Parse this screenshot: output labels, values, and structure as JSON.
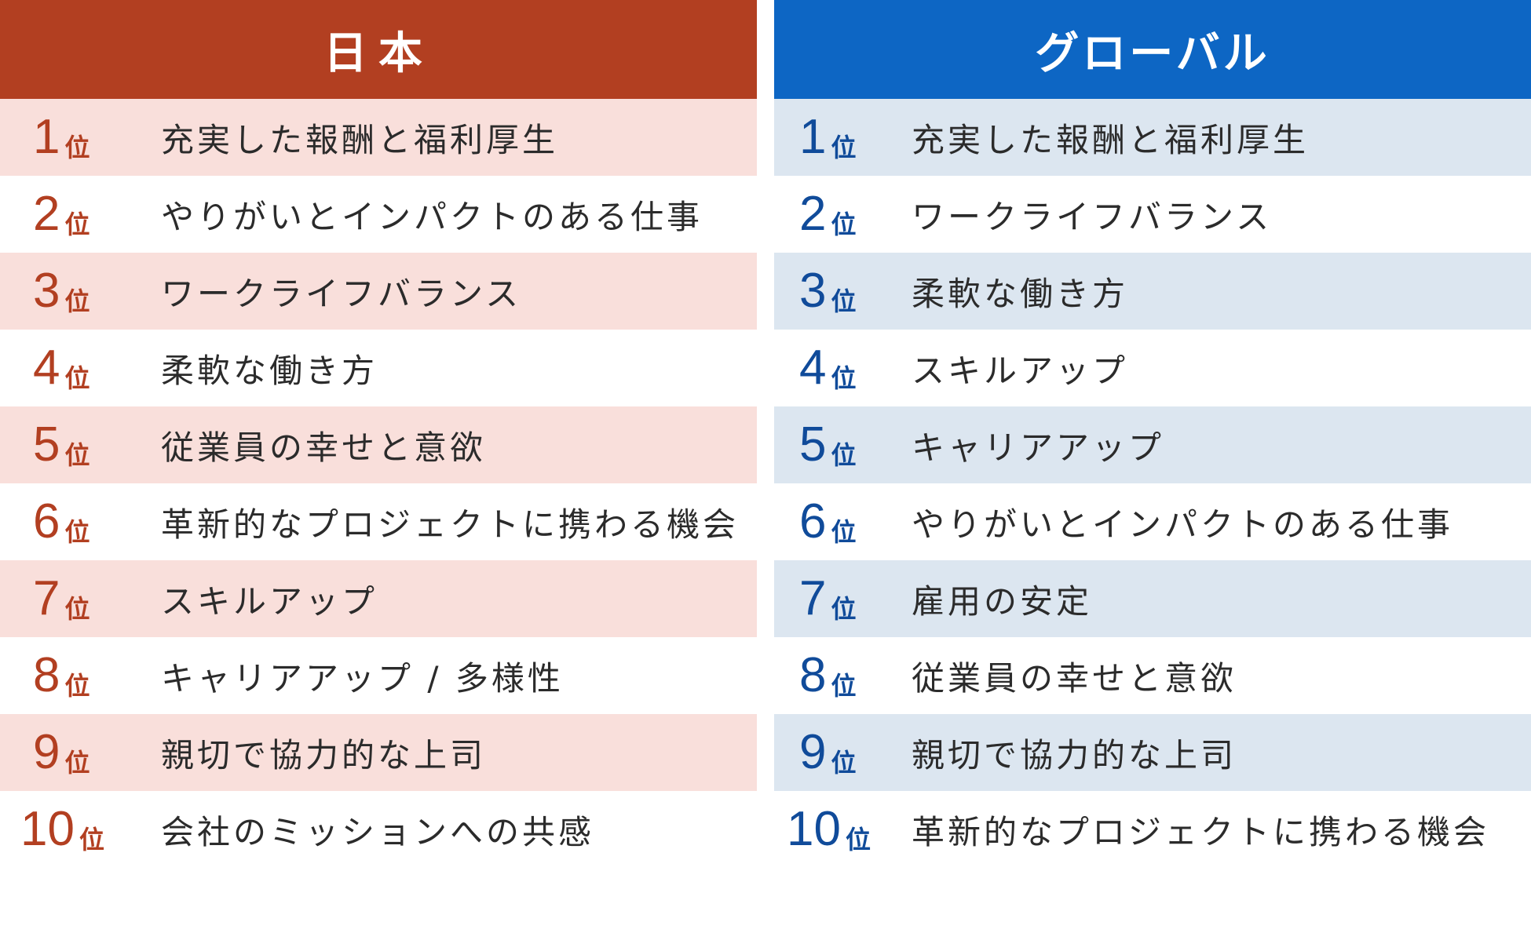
{
  "unit_label": "位",
  "japan": {
    "title": "日本",
    "items": [
      {
        "rank": "1",
        "text": "充実した報酬と福利厚生"
      },
      {
        "rank": "2",
        "text": "やりがいとインパクトのある仕事"
      },
      {
        "rank": "3",
        "text": "ワークライフバランス"
      },
      {
        "rank": "4",
        "text": "柔軟な働き方"
      },
      {
        "rank": "5",
        "text": "従業員の幸せと意欲"
      },
      {
        "rank": "6",
        "text": "革新的なプロジェクトに携わる機会"
      },
      {
        "rank": "7",
        "text": "スキルアップ"
      },
      {
        "rank": "8",
        "text": "キャリアアップ / 多様性"
      },
      {
        "rank": "9",
        "text": "親切で協力的な上司"
      },
      {
        "rank": "10",
        "text": "会社のミッションへの共感"
      }
    ]
  },
  "global": {
    "title": "グローバル",
    "items": [
      {
        "rank": "1",
        "text": "充実した報酬と福利厚生"
      },
      {
        "rank": "2",
        "text": "ワークライフバランス"
      },
      {
        "rank": "3",
        "text": "柔軟な働き方"
      },
      {
        "rank": "4",
        "text": "スキルアップ"
      },
      {
        "rank": "5",
        "text": "キャリアアップ"
      },
      {
        "rank": "6",
        "text": "やりがいとインパクトのある仕事"
      },
      {
        "rank": "7",
        "text": "雇用の安定"
      },
      {
        "rank": "8",
        "text": "従業員の幸せと意欲"
      },
      {
        "rank": "9",
        "text": "親切で協力的な上司"
      },
      {
        "rank": "10",
        "text": "革新的なプロジェクトに携わる機会"
      }
    ]
  },
  "colors": {
    "japan_header": "#b23f21",
    "japan_shade": "#f9dfdb",
    "global_header": "#0d66c4",
    "global_shade": "#dce6f0"
  }
}
